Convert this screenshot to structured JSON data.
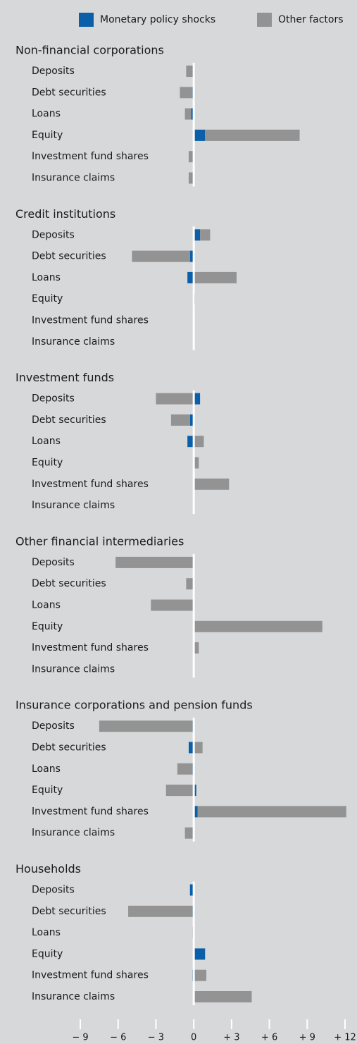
{
  "chart_data": {
    "type": "bar",
    "panels": [
      "Non-financial corporations",
      "Credit institutions",
      "Investment funds",
      "Other financial intermediaries",
      "Insurance corporations and pension funds",
      "Households"
    ],
    "categories": [
      "Deposits",
      "Debt securities",
      "Loans",
      "Equity",
      "Investment fund shares",
      "Insurance claims"
    ],
    "series": [
      {
        "name": "Monetary policy shocks",
        "color": "#0a5fa8",
        "values": [
          [
            0,
            -0.1,
            -0.2,
            0.9,
            0,
            0
          ],
          [
            0.5,
            -0.3,
            -0.5,
            0,
            0,
            0
          ],
          [
            0.5,
            -0.3,
            -0.5,
            0,
            0,
            0
          ],
          [
            0,
            0,
            0,
            0,
            0,
            0
          ],
          [
            -0.1,
            -0.4,
            -0.1,
            0.2,
            0.3,
            0
          ],
          [
            -0.3,
            -0.1,
            0,
            0.9,
            -0.1,
            0
          ]
        ]
      },
      {
        "name": "Other factors",
        "color": "#939393",
        "values": [
          [
            -0.6,
            -1.0,
            -0.5,
            7.5,
            -0.4,
            -0.4
          ],
          [
            0.8,
            -4.6,
            3.4,
            0.1,
            0,
            0
          ],
          [
            -3.0,
            -1.5,
            0.8,
            0.4,
            2.8,
            0
          ],
          [
            -6.2,
            -0.6,
            -3.4,
            10.2,
            0.4,
            0
          ],
          [
            -7.4,
            0.7,
            -1.2,
            -2.2,
            11.8,
            -0.7
          ],
          [
            0,
            -5.1,
            -0.1,
            0,
            1.0,
            4.6
          ]
        ]
      }
    ],
    "xlim": [
      -9,
      12
    ],
    "xticks": [
      {
        "value": -9,
        "label": "− 9"
      },
      {
        "value": -6,
        "label": "− 6"
      },
      {
        "value": -3,
        "label": "− 3"
      },
      0,
      {
        "value": 3,
        "label": "+ 3"
      },
      {
        "value": 6,
        "label": "+ 6"
      },
      {
        "value": 9,
        "label": "+ 9"
      },
      {
        "value": 12,
        "label": "+ 12"
      }
    ]
  }
}
